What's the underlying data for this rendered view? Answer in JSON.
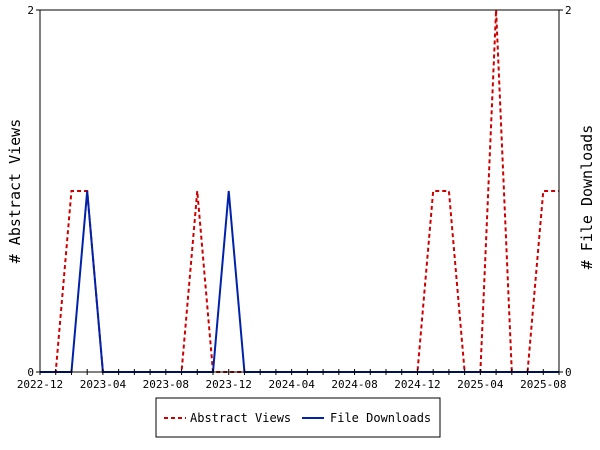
{
  "chart_data": {
    "type": "line",
    "xlabel": "",
    "ylabel_left": "# Abstract Views",
    "ylabel_right": "# File Downloads",
    "x_tick_labels": [
      "2022-12",
      "2023-04",
      "2023-08",
      "2023-12",
      "2024-04",
      "2024-08",
      "2024-12",
      "2025-04",
      "2025-08"
    ],
    "x_range": [
      "2022-12",
      "2025-08"
    ],
    "y_left_ticks": [
      "0",
      "2"
    ],
    "y_right_ticks": [
      "0",
      "2"
    ],
    "ylim_left": [
      0,
      2
    ],
    "ylim_right": [
      0,
      2
    ],
    "grid": false,
    "legend_placement": "bottom",
    "series": [
      {
        "name": "Abstract Views",
        "axis": "left",
        "color": "#cc0000",
        "style": "dashed",
        "points": [
          [
            "2022-12",
            0
          ],
          [
            "2023-01",
            0
          ],
          [
            "2023-02",
            1
          ],
          [
            "2023-03",
            1
          ],
          [
            "2023-04",
            0
          ],
          [
            "2023-05",
            0
          ],
          [
            "2023-06",
            0
          ],
          [
            "2023-07",
            0
          ],
          [
            "2023-08",
            0
          ],
          [
            "2023-09",
            0
          ],
          [
            "2023-10",
            1
          ],
          [
            "2023-11",
            0
          ],
          [
            "2023-12",
            0
          ],
          [
            "2024-01",
            0
          ],
          [
            "2024-02",
            0
          ],
          [
            "2024-03",
            0
          ],
          [
            "2024-04",
            0
          ],
          [
            "2024-05",
            0
          ],
          [
            "2024-06",
            0
          ],
          [
            "2024-07",
            0
          ],
          [
            "2024-08",
            0
          ],
          [
            "2024-09",
            0
          ],
          [
            "2024-10",
            0
          ],
          [
            "2024-11",
            0
          ],
          [
            "2024-12",
            0
          ],
          [
            "2025-01",
            1
          ],
          [
            "2025-02",
            1
          ],
          [
            "2025-03",
            0
          ],
          [
            "2025-04",
            0
          ],
          [
            "2025-05",
            2
          ],
          [
            "2025-06",
            0
          ],
          [
            "2025-07",
            0
          ],
          [
            "2025-08",
            1
          ],
          [
            "2025-09",
            1
          ]
        ]
      },
      {
        "name": "File Downloads",
        "axis": "right",
        "color": "#0022aa",
        "style": "solid",
        "points": [
          [
            "2022-12",
            0
          ],
          [
            "2023-01",
            0
          ],
          [
            "2023-02",
            0
          ],
          [
            "2023-03",
            1
          ],
          [
            "2023-04",
            0
          ],
          [
            "2023-05",
            0
          ],
          [
            "2023-06",
            0
          ],
          [
            "2023-07",
            0
          ],
          [
            "2023-08",
            0
          ],
          [
            "2023-09",
            0
          ],
          [
            "2023-10",
            0
          ],
          [
            "2023-11",
            0
          ],
          [
            "2023-12",
            1
          ],
          [
            "2024-01",
            0
          ],
          [
            "2024-02",
            0
          ],
          [
            "2024-03",
            0
          ],
          [
            "2024-04",
            0
          ],
          [
            "2024-05",
            0
          ],
          [
            "2024-06",
            0
          ],
          [
            "2024-07",
            0
          ],
          [
            "2024-08",
            0
          ],
          [
            "2024-09",
            0
          ],
          [
            "2024-10",
            0
          ],
          [
            "2024-11",
            0
          ],
          [
            "2024-12",
            0
          ],
          [
            "2025-01",
            0
          ],
          [
            "2025-02",
            0
          ],
          [
            "2025-03",
            0
          ],
          [
            "2025-04",
            0
          ],
          [
            "2025-05",
            0
          ],
          [
            "2025-06",
            0
          ],
          [
            "2025-07",
            0
          ],
          [
            "2025-08",
            0
          ],
          [
            "2025-09",
            0
          ]
        ]
      }
    ]
  }
}
